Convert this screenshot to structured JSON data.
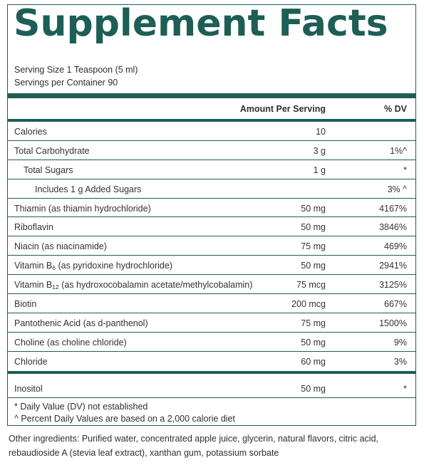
{
  "title": "Supplement Facts",
  "serving_size": "Serving Size 1 Teaspoon (5 ml)",
  "servings_per_container": "Servings per Container 90",
  "header": {
    "amount": "Amount Per Serving",
    "dv": "% DV"
  },
  "rows": [
    {
      "name": "Calories",
      "amount": "10",
      "dv": ""
    },
    {
      "name": "Total Carbohydrate",
      "amount": "3 g",
      "dv": "1%^"
    },
    {
      "name": "Total Sugars",
      "amount": "1 g",
      "dv": "*"
    },
    {
      "name": "Includes 1 g Added Sugars",
      "amount": "",
      "dv": "3% ^"
    },
    {
      "name": "Thiamin (as thiamin hydrochloride)",
      "amount": "50 mg",
      "dv": "4167%"
    },
    {
      "name": "Riboflavin",
      "amount": "50 mg",
      "dv": "3846%"
    },
    {
      "name": "Niacin (as niacinamide)",
      "amount": "75 mg",
      "dv": "469%"
    },
    {
      "name_pre": "Vitamin B",
      "name_sub": "6",
      "name_post": " (as pyridoxine hydrochloride)",
      "amount": "50 mg",
      "dv": "2941%"
    },
    {
      "name_pre": "Vitamin B",
      "name_sub": "12",
      "name_post": " (as hydroxocobalamin acetate/methylcobalamin)",
      "amount": "75 mcg",
      "dv": "3125%"
    },
    {
      "name": "Biotin",
      "amount": "200 mcg",
      "dv": "667%"
    },
    {
      "name": "Pantothenic Acid (as d-panthenol)",
      "amount": "75 mg",
      "dv": "1500%"
    },
    {
      "name": "Choline (as choline chloride)",
      "amount": "50 mg",
      "dv": "9%"
    },
    {
      "name": "Chloride",
      "amount": "60 mg",
      "dv": "3%"
    }
  ],
  "inositol": {
    "name": "Inositol",
    "amount": "50 mg",
    "dv": "*"
  },
  "footnotes": [
    "* Daily Value (DV) not established",
    "^ Percent Daily Values are based on a 2,000 calorie diet"
  ],
  "other_ingredients": [
    "Other ingredients: Purified water, concentrated apple juice, glycerin, natural flavors, citric acid,",
    "rebaudioside A (stevia leaf extract), xanthan gum, potassium sorbate"
  ]
}
